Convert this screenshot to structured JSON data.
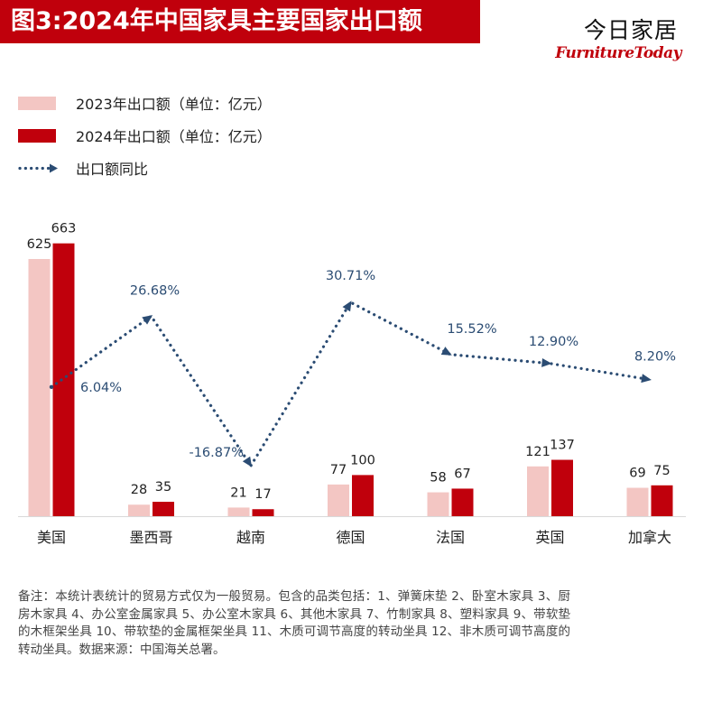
{
  "header": {
    "title": "图3:2024年中国家具主要国家出口额",
    "brand_name": "今日家居",
    "brand_sub": "FurnitureToday"
  },
  "colors": {
    "series_2023": "#f3c6c3",
    "series_2024": "#c0000c",
    "yoy_line": "#2b4c73",
    "title_bg": "#c0000c"
  },
  "chart_data": {
    "type": "bar",
    "categories": [
      "美国",
      "墨西哥",
      "越南",
      "德国",
      "法国",
      "英国",
      "加拿大"
    ],
    "series": [
      {
        "name": "2023年出口额（单位：亿元）",
        "type": "bar",
        "values": [
          625,
          28,
          21,
          77,
          58,
          121,
          69
        ]
      },
      {
        "name": "2024年出口额（单位：亿元）",
        "type": "bar",
        "values": [
          663,
          35,
          17,
          100,
          67,
          137,
          75
        ]
      },
      {
        "name": "出口额同比",
        "type": "line",
        "style": "dotted-arrow",
        "values": [
          6.04,
          26.68,
          -16.87,
          30.71,
          15.52,
          12.9,
          8.2
        ]
      }
    ],
    "line_labels": [
      "6.04%",
      "26.68%",
      "-16.87%",
      "30.71%",
      "15.52%",
      "12.90%",
      "8.20%"
    ],
    "bar_ylim": [
      0,
      700
    ],
    "line_ylim": [
      -30,
      80
    ],
    "gridlines": false,
    "legend_position": "top-left"
  },
  "note": {
    "text": "备注：本统计表统计的贸易方式仅为一般贸易。包含的品类包括：1、弹簧床垫 2、卧室木家具 3、厨房木家具 4、办公室金属家具 5、办公室木家具 6、其他木家具 7、竹制家具 8、塑料家具 9、带软垫的木框架坐具 10、带软垫的金属框架坐具 11、木质可调节高度的转动坐具 12、非木质可调节高度的转动坐具。数据来源：中国海关总署。"
  }
}
